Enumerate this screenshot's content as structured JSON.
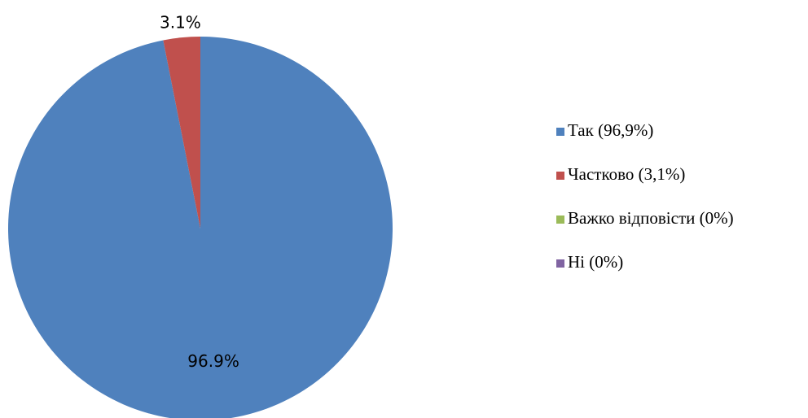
{
  "chart_data": {
    "type": "pie",
    "categories": [
      "Так (96,9%)",
      "Частково (3,1%)",
      "Важко відповісти (0%)",
      "Ні (0%)"
    ],
    "values": [
      96.9,
      3.1,
      0,
      0
    ],
    "value_labels": [
      "96.9%",
      "3.1%",
      null,
      null
    ],
    "colors": [
      "#4f81bd",
      "#c0504d",
      "#9bbb59",
      "#8064a2"
    ],
    "legend": "right"
  }
}
